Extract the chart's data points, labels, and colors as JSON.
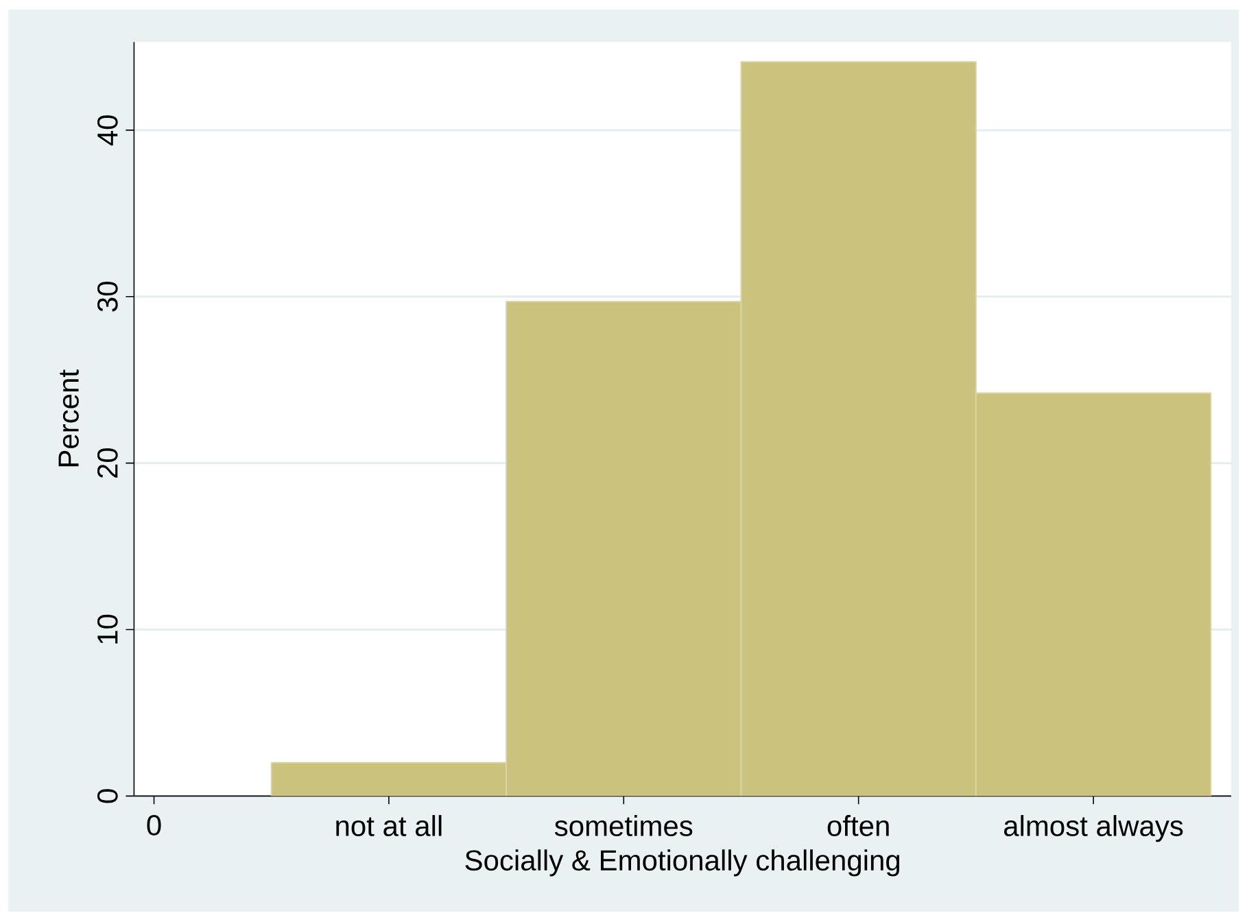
{
  "chart_data": {
    "type": "bar",
    "xlabel": "Socially & Emotionally challenging",
    "ylabel": "Percent",
    "categories": [
      "0",
      "not at all",
      "sometimes",
      "often",
      "almost always"
    ],
    "values": [
      null,
      2.0,
      29.7,
      44.1,
      24.2
    ],
    "color": "#cbc27e",
    "ylim": [
      0,
      45.3
    ],
    "yticks": [
      0,
      10,
      20,
      30,
      40
    ],
    "grid": "y"
  }
}
